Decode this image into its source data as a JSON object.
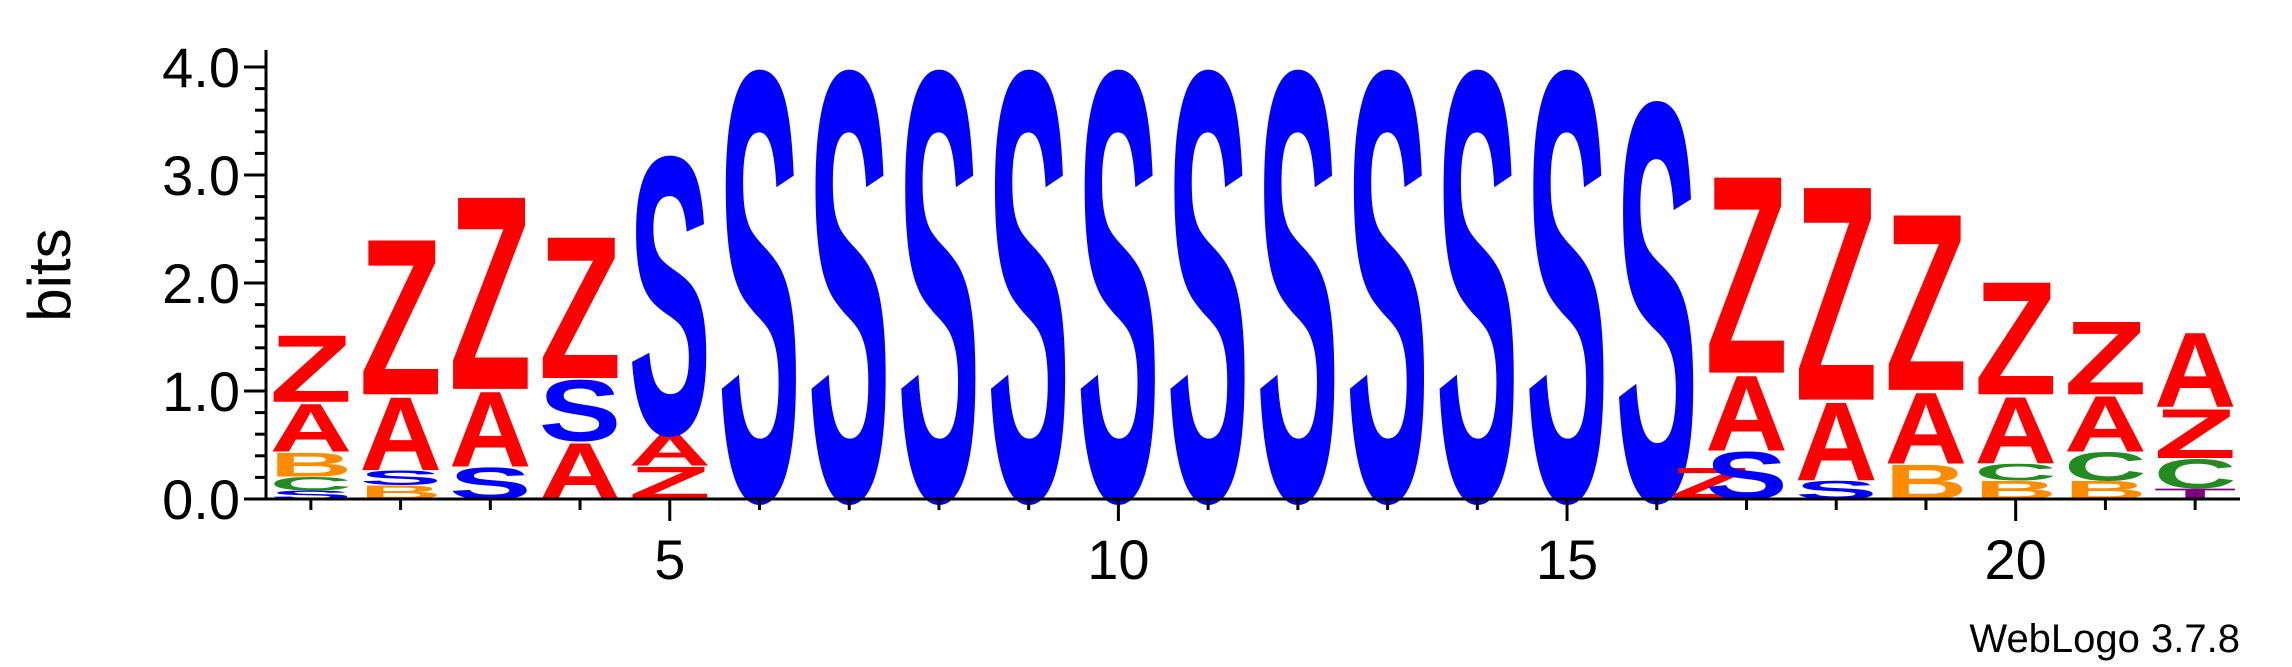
{
  "chart_data": {
    "type": "sequence-logo",
    "ylabel": "bits",
    "ylim": [
      0,
      4.0
    ],
    "yticks": [
      {
        "value": 0,
        "label": "0.0"
      },
      {
        "value": 1,
        "label": "1.0"
      },
      {
        "value": 2,
        "label": "2.0"
      },
      {
        "value": 3,
        "label": "3.0"
      },
      {
        "value": 4,
        "label": "4.0"
      }
    ],
    "xticks": [
      {
        "value": 5,
        "label": "5"
      },
      {
        "value": 10,
        "label": "10"
      },
      {
        "value": 15,
        "label": "15"
      },
      {
        "value": 20,
        "label": "20"
      }
    ],
    "positions": 22,
    "colors": {
      "S": "#0000ff",
      "Z": "#ff0000",
      "A": "#ff0000",
      "B": "#ff8c00",
      "C": "#228b22",
      "T": "#800080"
    },
    "columns": [
      {
        "pos": 1,
        "stack": [
          [
            "S",
            0.08
          ],
          [
            "C",
            0.13
          ],
          [
            "B",
            0.23
          ],
          [
            "A",
            0.46
          ],
          [
            "Z",
            0.64
          ]
        ]
      },
      {
        "pos": 2,
        "stack": [
          [
            "B",
            0.13
          ],
          [
            "S",
            0.14
          ],
          [
            "A",
            0.7
          ],
          [
            "Z",
            1.49
          ]
        ]
      },
      {
        "pos": 3,
        "stack": [
          [
            "S",
            0.3
          ],
          [
            "A",
            0.72
          ],
          [
            "Z",
            1.85
          ]
        ]
      },
      {
        "pos": 4,
        "stack": [
          [
            "A",
            0.54
          ],
          [
            "S",
            0.58
          ],
          [
            "Z",
            1.36
          ]
        ]
      },
      {
        "pos": 5,
        "stack": [
          [
            "Z",
            0.31
          ],
          [
            "A",
            0.3
          ],
          [
            "S",
            2.65
          ]
        ]
      },
      {
        "pos": 6,
        "stack": [
          [
            "S",
            4.1
          ]
        ]
      },
      {
        "pos": 7,
        "stack": [
          [
            "S",
            4.1
          ]
        ]
      },
      {
        "pos": 8,
        "stack": [
          [
            "S",
            4.1
          ]
        ]
      },
      {
        "pos": 9,
        "stack": [
          [
            "S",
            4.1
          ]
        ]
      },
      {
        "pos": 10,
        "stack": [
          [
            "S",
            4.1
          ]
        ]
      },
      {
        "pos": 11,
        "stack": [
          [
            "S",
            4.1
          ]
        ]
      },
      {
        "pos": 12,
        "stack": [
          [
            "S",
            4.1
          ]
        ]
      },
      {
        "pos": 13,
        "stack": [
          [
            "S",
            4.1
          ]
        ]
      },
      {
        "pos": 14,
        "stack": [
          [
            "S",
            4.1
          ]
        ]
      },
      {
        "pos": 15,
        "stack": [
          [
            "S",
            4.1
          ]
        ]
      },
      {
        "pos": 16,
        "stack": [
          [
            "S",
            3.8
          ]
        ]
      },
      {
        "pos": 16.6,
        "stack": [
          [
            "Z",
            0.3
          ]
        ]
      },
      {
        "pos": 17,
        "stack": [
          [
            "S",
            0.45
          ],
          [
            "A",
            0.72
          ],
          [
            "Z",
            1.89
          ]
        ]
      },
      {
        "pos": 18,
        "stack": [
          [
            "S",
            0.17
          ],
          [
            "A",
            0.75
          ],
          [
            "Z",
            2.05
          ]
        ]
      },
      {
        "pos": 19,
        "stack": [
          [
            "B",
            0.33
          ],
          [
            "A",
            0.68
          ],
          [
            "Z",
            1.69
          ]
        ]
      },
      {
        "pos": 20,
        "stack": [
          [
            "B",
            0.17
          ],
          [
            "C",
            0.16
          ],
          [
            "A",
            0.64
          ],
          [
            "Z",
            1.08
          ]
        ]
      },
      {
        "pos": 21,
        "stack": [
          [
            "B",
            0.17
          ],
          [
            "C",
            0.27
          ],
          [
            "A",
            0.53
          ],
          [
            "Z",
            0.7
          ]
        ]
      },
      {
        "pos": 22,
        "stack": [
          [
            "T",
            0.1
          ],
          [
            "C",
            0.28
          ],
          [
            "Z",
            0.47
          ],
          [
            "A",
            0.71
          ]
        ]
      }
    ],
    "credit": "WebLogo 3.7.8"
  }
}
